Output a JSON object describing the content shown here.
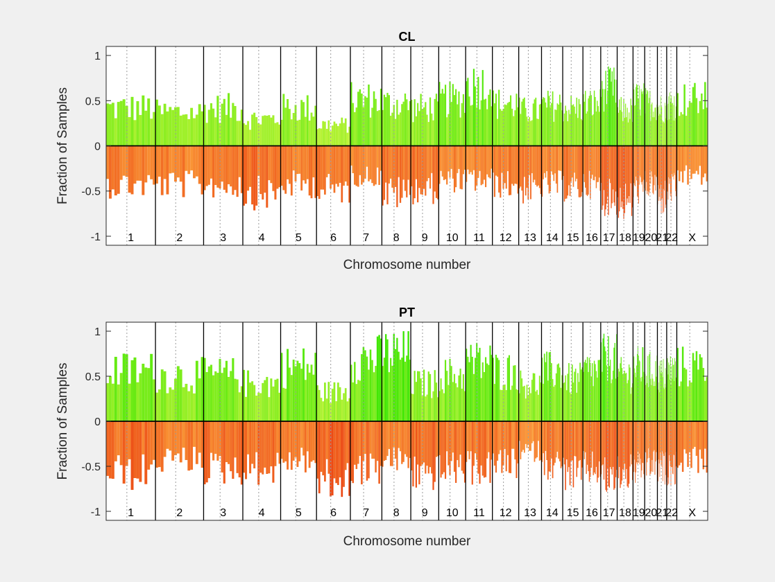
{
  "window": {
    "background": "#f0f0f0",
    "axes_background": "#ffffff"
  },
  "chart_data": [
    {
      "type": "bar",
      "title": "CL",
      "xlabel": "Chromosome number",
      "ylabel": "Fraction of Samples",
      "ylim": [
        -1.1,
        1.1
      ],
      "yticks": [
        -1,
        -0.5,
        0,
        0.5,
        1
      ],
      "ytick_labels": [
        "-1",
        "-0.5",
        "0",
        "0.5",
        "1"
      ],
      "grid": false,
      "gain_color_low": "#d6f542",
      "gain_color_high": "#39e600",
      "loss_color_low": "#ffb845",
      "loss_color_high": "#e8330b",
      "chromosomes": [
        "1",
        "2",
        "3",
        "4",
        "5",
        "6",
        "7",
        "8",
        "9",
        "10",
        "11",
        "12",
        "13",
        "14",
        "15",
        "16",
        "17",
        "18",
        "19",
        "20",
        "21",
        "22",
        "X"
      ],
      "chromosome_sizes": [
        249,
        243,
        198,
        191,
        181,
        171,
        159,
        146,
        141,
        136,
        135,
        133,
        115,
        107,
        102,
        90,
        83,
        80,
        59,
        64,
        47,
        51,
        156
      ],
      "gain_profile": [
        0.45,
        0.4,
        0.45,
        0.32,
        0.45,
        0.25,
        0.55,
        0.5,
        0.45,
        0.55,
        0.72,
        0.5,
        0.42,
        0.48,
        0.45,
        0.5,
        0.68,
        0.42,
        0.55,
        0.5,
        0.45,
        0.5,
        0.55
      ],
      "loss_profile": [
        0.45,
        0.45,
        0.45,
        0.55,
        0.45,
        0.5,
        0.35,
        0.55,
        0.5,
        0.4,
        0.4,
        0.45,
        0.5,
        0.45,
        0.48,
        0.45,
        0.6,
        0.65,
        0.5,
        0.45,
        0.6,
        0.5,
        0.35
      ],
      "bars_per_chromosome": 18
    },
    {
      "type": "bar",
      "title": "PT",
      "xlabel": "Chromosome number",
      "ylabel": "Fraction of Samples",
      "ylim": [
        -1.1,
        1.1
      ],
      "yticks": [
        -1,
        -0.5,
        0,
        0.5,
        1
      ],
      "ytick_labels": [
        "-1",
        "-0.5",
        "0",
        "0.5",
        "1"
      ],
      "grid": false,
      "gain_color_low": "#d6f542",
      "gain_color_high": "#39e600",
      "loss_color_low": "#ffb845",
      "loss_color_high": "#e8330b",
      "chromosomes": [
        "1",
        "2",
        "3",
        "4",
        "5",
        "6",
        "7",
        "8",
        "9",
        "10",
        "11",
        "12",
        "13",
        "14",
        "15",
        "16",
        "17",
        "18",
        "19",
        "20",
        "21",
        "22",
        "X"
      ],
      "chromosome_sizes": [
        249,
        243,
        198,
        191,
        181,
        171,
        159,
        146,
        141,
        136,
        135,
        133,
        115,
        107,
        102,
        90,
        83,
        80,
        59,
        64,
        47,
        51,
        156
      ],
      "gain_profile": [
        0.6,
        0.55,
        0.55,
        0.45,
        0.65,
        0.35,
        0.75,
        0.8,
        0.45,
        0.55,
        0.7,
        0.6,
        0.45,
        0.6,
        0.5,
        0.6,
        0.75,
        0.55,
        0.65,
        0.6,
        0.55,
        0.6,
        0.65
      ],
      "loss_profile": [
        0.6,
        0.45,
        0.55,
        0.55,
        0.45,
        0.7,
        0.55,
        0.45,
        0.6,
        0.55,
        0.55,
        0.5,
        0.35,
        0.5,
        0.6,
        0.55,
        0.65,
        0.6,
        0.55,
        0.5,
        0.55,
        0.55,
        0.45
      ],
      "bars_per_chromosome": 18
    }
  ]
}
